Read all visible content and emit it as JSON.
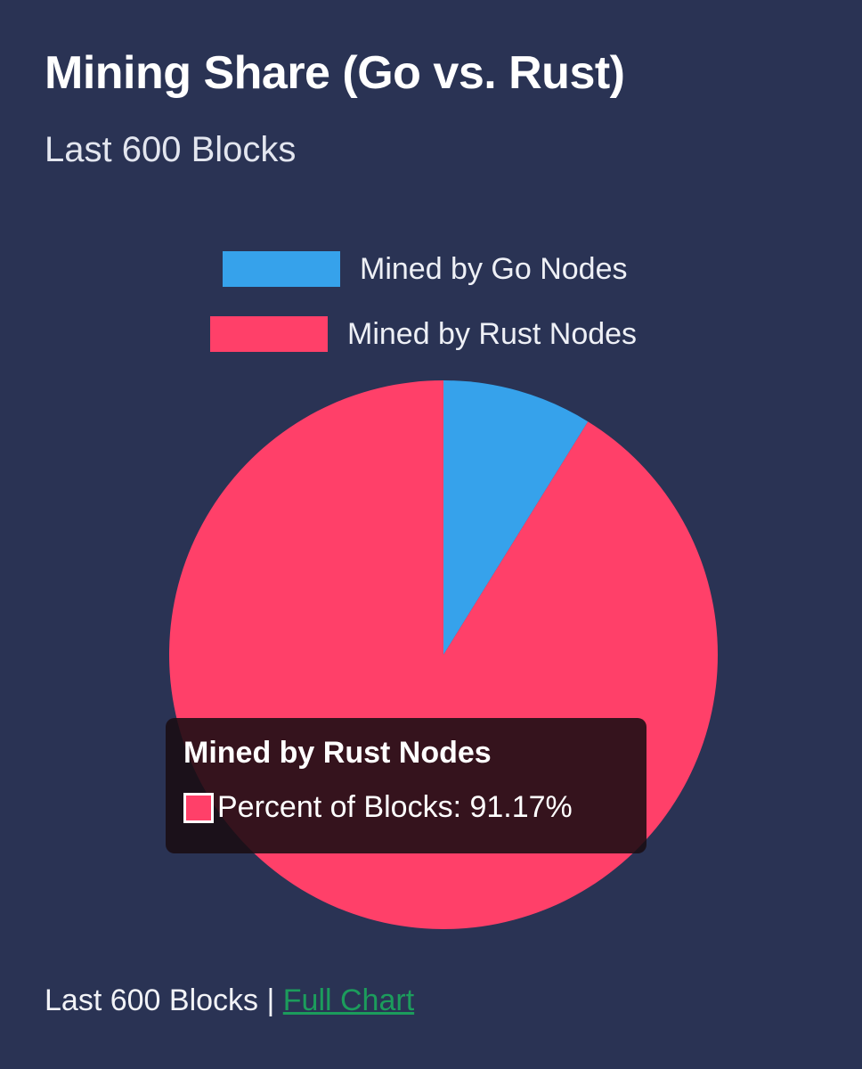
{
  "header": {
    "title": "Mining Share (Go vs. Rust)",
    "subtitle": "Last 600 Blocks"
  },
  "colors": {
    "background": "#2a3354",
    "go": "#36a2eb",
    "rust": "#ff4069",
    "link": "#1c9c5c"
  },
  "chart_data": {
    "type": "pie",
    "title": "Mining Share (Go vs. Rust)",
    "subtitle": "Last 600 Blocks",
    "legend_position": "top",
    "series": [
      {
        "name": "Mined by Go Nodes",
        "value": 8.83,
        "color": "#36a2eb"
      },
      {
        "name": "Mined by Rust Nodes",
        "value": 91.17,
        "color": "#ff4069"
      }
    ]
  },
  "tooltip": {
    "title": "Mined by Rust Nodes",
    "text": "Percent of Blocks: 91.17%"
  },
  "footer": {
    "text": "Last 600 Blocks |",
    "link_label": "Full Chart"
  }
}
